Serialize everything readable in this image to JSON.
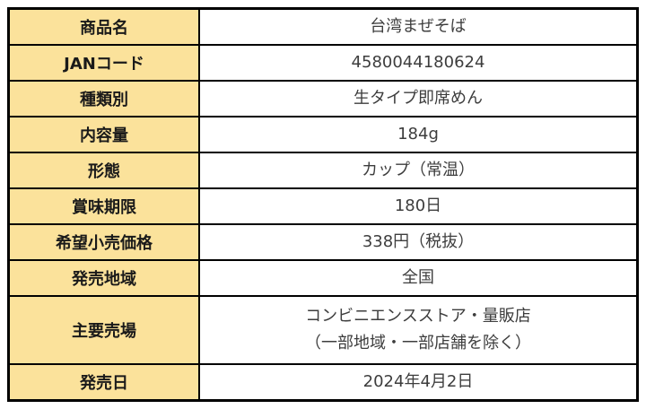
{
  "table": {
    "label_bg": "#FBE29B",
    "border_color": "#000000",
    "label_text_color": "#1a1a1a",
    "value_text_color": "#3d3d3d",
    "rows": [
      {
        "label": "商品名",
        "value": "台湾まぜそば"
      },
      {
        "label": "JANコード",
        "value": "4580044180624"
      },
      {
        "label": "種類別",
        "value": "生タイプ即席めん"
      },
      {
        "label": "内容量",
        "value": "184g"
      },
      {
        "label": "形態",
        "value": "カップ（常温）"
      },
      {
        "label": "賞味期限",
        "value": "180日"
      },
      {
        "label": "希望小売価格",
        "value": "338円（税抜）"
      },
      {
        "label": "発売地域",
        "value": "全国"
      },
      {
        "label": "主要売場",
        "value": "コンビニエンスストア・量販店\n（一部地域・一部店舗を除く）"
      },
      {
        "label": "発売日",
        "value": "2024年4月2日"
      }
    ]
  }
}
